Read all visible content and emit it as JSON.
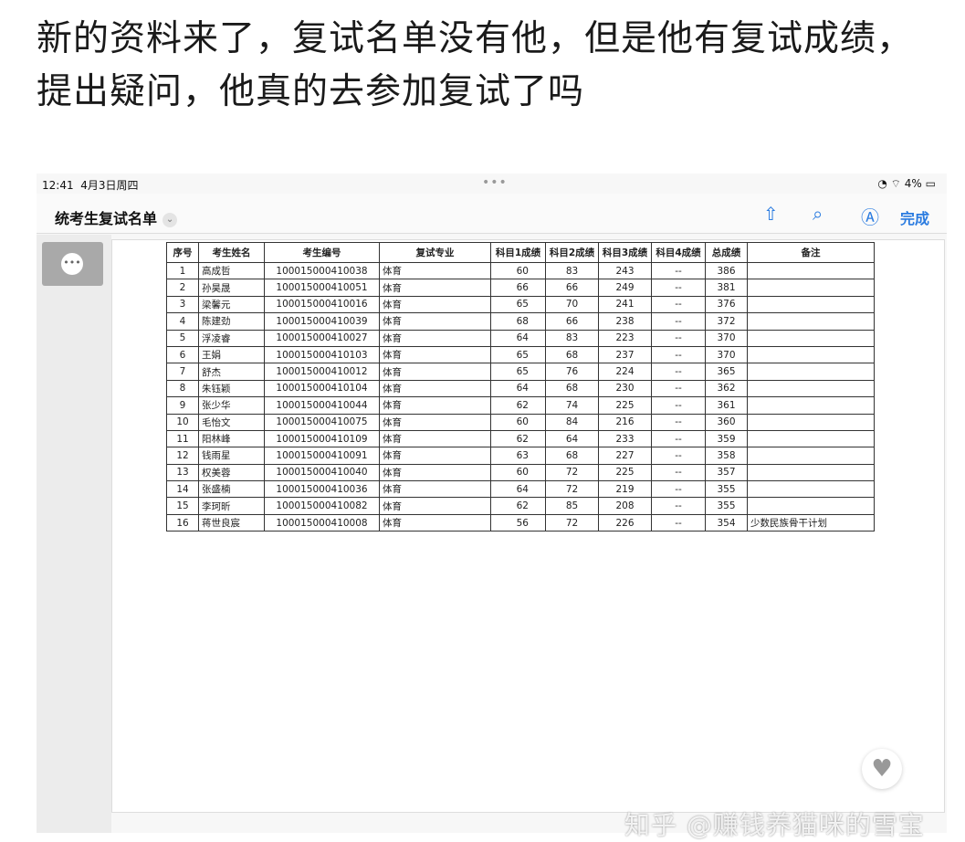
{
  "post": {
    "text": "新的资料来了，复试名单没有他，但是他有复试成绩，提出疑问，他真的去参加复试了吗"
  },
  "status": {
    "time": "12:41",
    "date": "4月3日周四",
    "battery": "4%",
    "dots": "•••"
  },
  "nav": {
    "title": "统考生复试名单",
    "done": "完成",
    "icons": [
      "share-icon",
      "search-icon",
      "markup-icon"
    ]
  },
  "accent": "#2a7be0",
  "table": {
    "headers": [
      "序号",
      "考生姓名",
      "考生编号",
      "复试专业",
      "科目1成绩",
      "科目2成绩",
      "科目3成绩",
      "科目4成绩",
      "总成绩",
      "备注"
    ],
    "rows": [
      [
        "1",
        "高成哲",
        "100015000410038",
        "体育",
        "60",
        "83",
        "243",
        "--",
        "386",
        ""
      ],
      [
        "2",
        "孙昊晟",
        "100015000410051",
        "体育",
        "66",
        "66",
        "249",
        "--",
        "381",
        ""
      ],
      [
        "3",
        "梁馨元",
        "100015000410016",
        "体育",
        "65",
        "70",
        "241",
        "--",
        "376",
        ""
      ],
      [
        "4",
        "陈建劲",
        "100015000410039",
        "体育",
        "68",
        "66",
        "238",
        "--",
        "372",
        ""
      ],
      [
        "5",
        "浮凌睿",
        "100015000410027",
        "体育",
        "64",
        "83",
        "223",
        "--",
        "370",
        ""
      ],
      [
        "6",
        "王娟",
        "100015000410103",
        "体育",
        "65",
        "68",
        "237",
        "--",
        "370",
        ""
      ],
      [
        "7",
        "舒杰",
        "100015000410012",
        "体育",
        "65",
        "76",
        "224",
        "--",
        "365",
        ""
      ],
      [
        "8",
        "朱钰颖",
        "100015000410104",
        "体育",
        "64",
        "68",
        "230",
        "--",
        "362",
        ""
      ],
      [
        "9",
        "张少华",
        "100015000410044",
        "体育",
        "62",
        "74",
        "225",
        "--",
        "361",
        ""
      ],
      [
        "10",
        "毛怡文",
        "100015000410075",
        "体育",
        "60",
        "84",
        "216",
        "--",
        "360",
        ""
      ],
      [
        "11",
        "阳林峰",
        "100015000410109",
        "体育",
        "62",
        "64",
        "233",
        "--",
        "359",
        ""
      ],
      [
        "12",
        "钱雨星",
        "100015000410091",
        "体育",
        "63",
        "68",
        "227",
        "--",
        "358",
        ""
      ],
      [
        "13",
        "权美蓉",
        "100015000410040",
        "体育",
        "60",
        "72",
        "225",
        "--",
        "357",
        ""
      ],
      [
        "14",
        "张盛楠",
        "100015000410036",
        "体育",
        "64",
        "72",
        "219",
        "--",
        "355",
        ""
      ],
      [
        "15",
        "李珂昕",
        "100015000410082",
        "体育",
        "62",
        "85",
        "208",
        "--",
        "355",
        ""
      ],
      [
        "16",
        "蒋世良宸",
        "100015000410008",
        "体育",
        "56",
        "72",
        "226",
        "--",
        "354",
        "少数民族骨干计划"
      ]
    ]
  },
  "watermark": "知乎 @赚钱养猫咪的雪宝"
}
